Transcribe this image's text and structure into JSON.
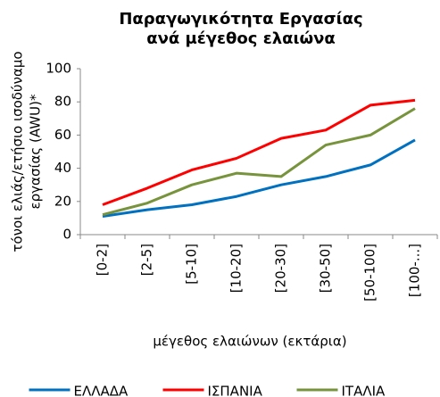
{
  "chart_data": {
    "type": "line",
    "title": [
      "Παραγωγικότητα Εργασίας",
      "ανά μέγεθος ελαιώνα"
    ],
    "y_label": [
      "τόνοι ελιάς/ετήσιο ισοδύναμο",
      "εργασίας (AWU)*"
    ],
    "x_label": "μέγεθος ελαιώνων (εκτάρια)",
    "categories": [
      "[0-2]",
      "[2-5]",
      "[5-10]",
      "[10-20]",
      "[20-30]",
      "[30-50]",
      "[50-100]",
      "[100-...]"
    ],
    "series": [
      {
        "name": "ΕΛΛΑΔΑ",
        "color": "#0070c0",
        "values": [
          11,
          15,
          18,
          23,
          30,
          35,
          42,
          57
        ]
      },
      {
        "name": "ΙΣΠΑΝΙΑ",
        "color": "#ff0000",
        "values": [
          18,
          28,
          39,
          46,
          58,
          63,
          78,
          81
        ]
      },
      {
        "name": "ΙΤΑΛΙΑ",
        "color": "#77933c",
        "values": [
          12,
          19,
          30,
          37,
          35,
          54,
          60,
          76
        ]
      }
    ],
    "ylim": [
      0,
      100
    ],
    "yticks": [
      0,
      20,
      40,
      60,
      80,
      100
    ],
    "grid": false,
    "legend": "bottom"
  }
}
